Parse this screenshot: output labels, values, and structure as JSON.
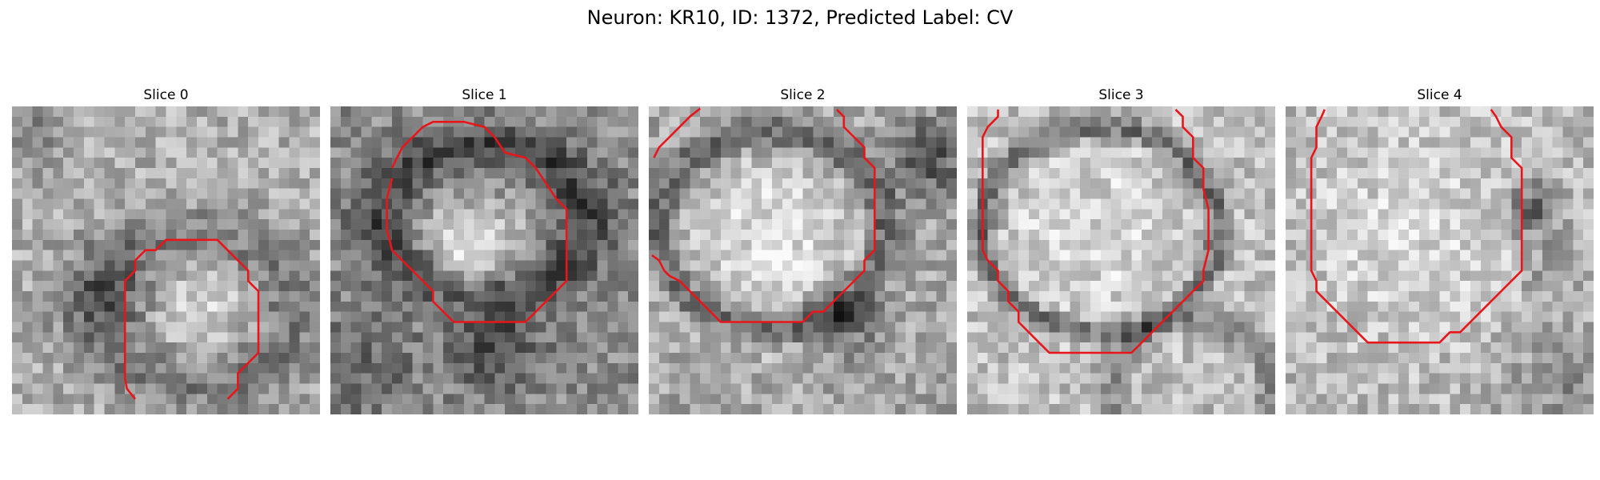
{
  "figure": {
    "title": "Neuron: KR10, ID: 1372, Predicted Label: CV"
  },
  "panels": [
    {
      "title": "Slice 0"
    },
    {
      "title": "Slice 1"
    },
    {
      "title": "Slice 2"
    },
    {
      "title": "Slice 3"
    },
    {
      "title": "Slice 4"
    }
  ],
  "colors": {
    "contour": "#e8151a",
    "background": "#ffffff"
  }
}
